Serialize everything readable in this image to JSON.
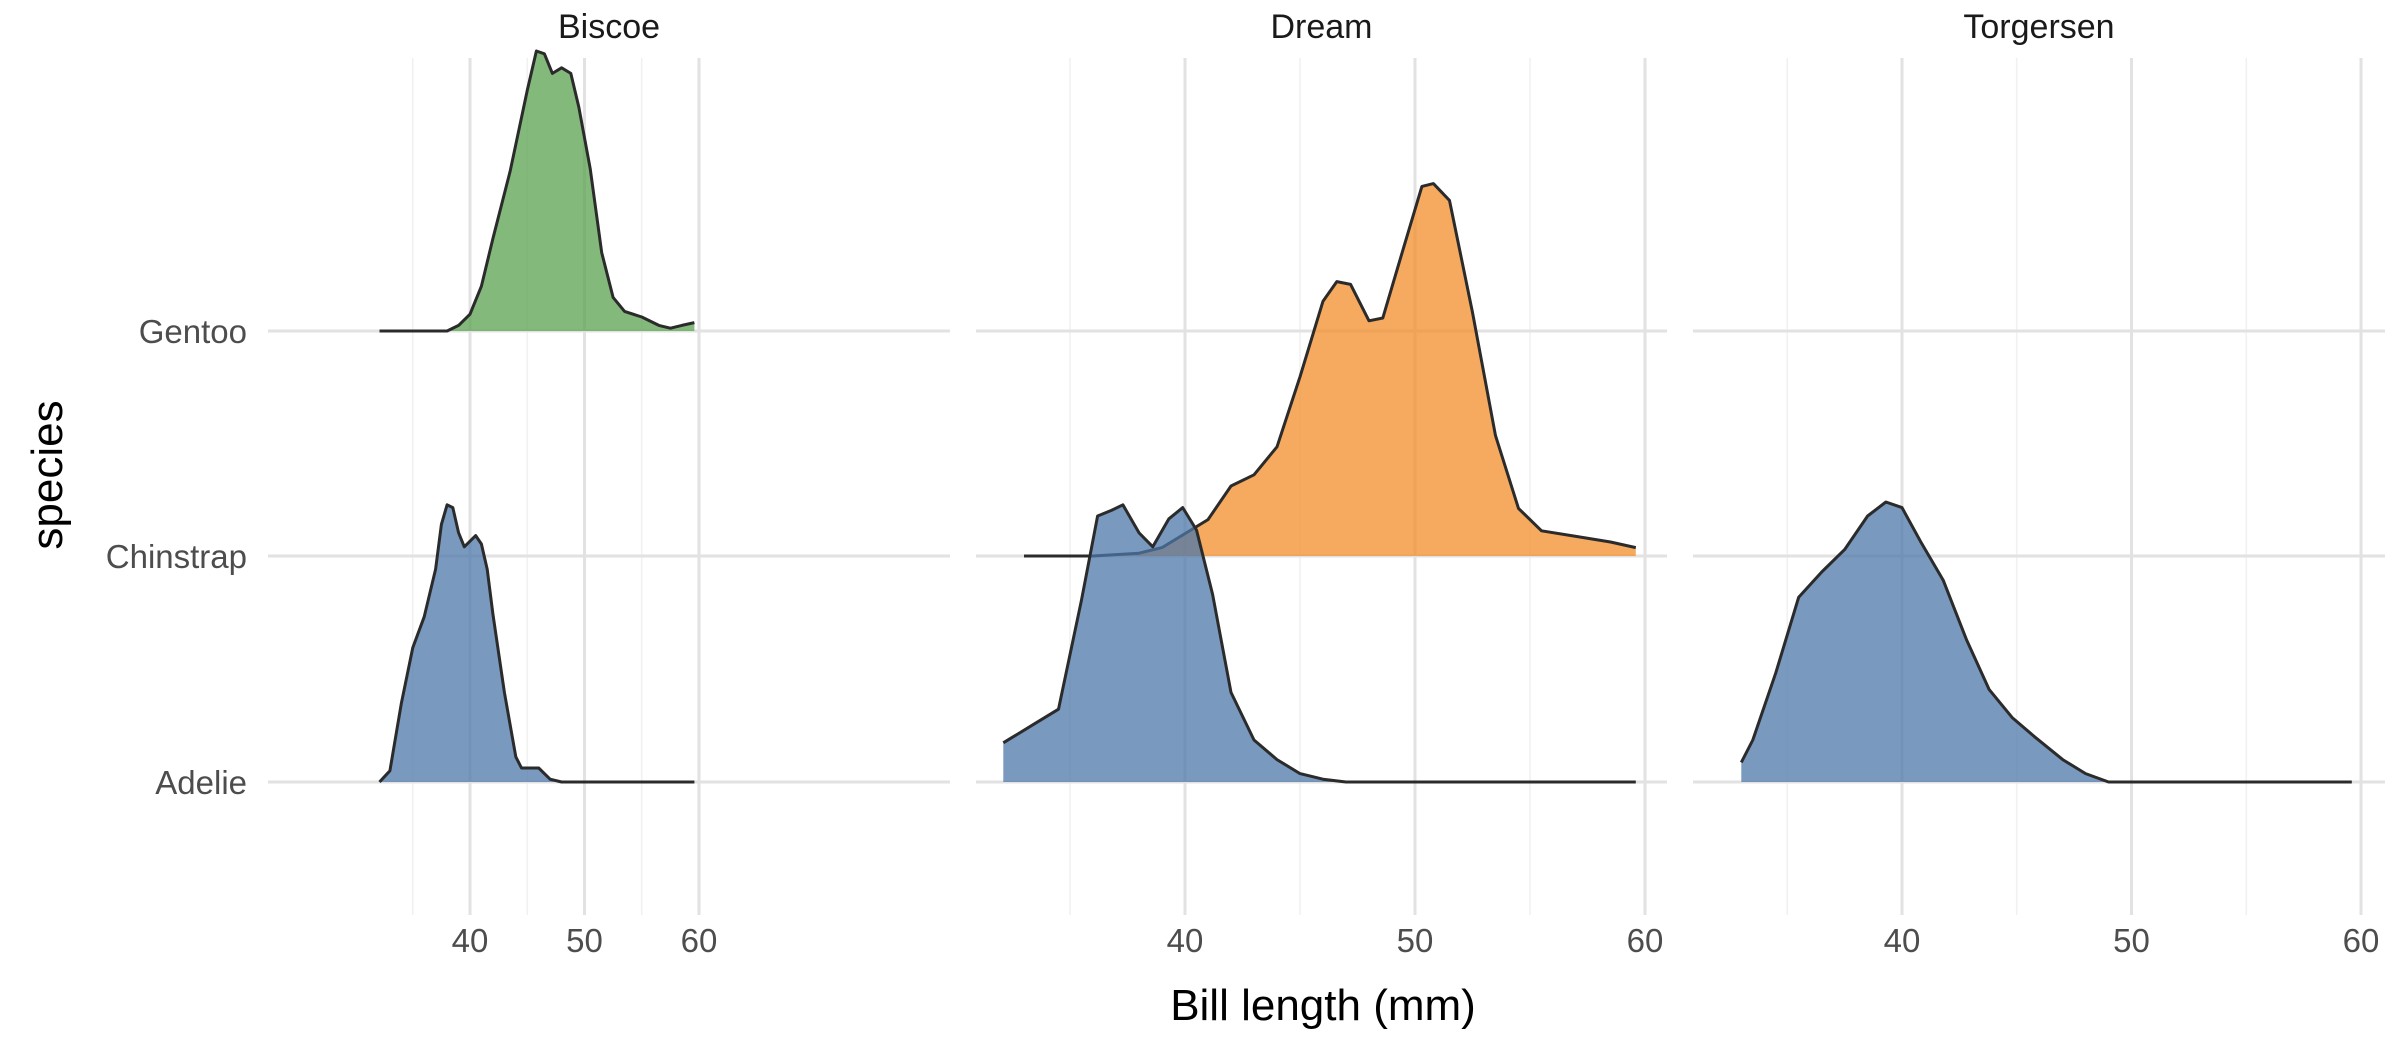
{
  "chart_data": {
    "type": "ridgeline-density",
    "facets": [
      "Biscoe",
      "Dream",
      "Torgersen"
    ],
    "categories": [
      "Adelie",
      "Chinstrap",
      "Gentoo"
    ],
    "xlabel": "Bill length (mm)",
    "ylabel": "species",
    "xlim": [
      32.1,
      59.6
    ],
    "x_ticks": [
      40,
      50,
      60
    ],
    "x_tick_labels": [
      "40",
      "50",
      "60"
    ],
    "colors": {
      "Adelie": "#4c77a9",
      "Chinstrap": "#f28e2b",
      "Gentoo": "#59a14f"
    },
    "grid": true,
    "legend": "none",
    "series": [
      {
        "facet": "Biscoe",
        "name": "Adelie",
        "x_range": [
          32.1,
          59.6
        ],
        "points": [
          [
            32.1,
            0.0
          ],
          [
            33.0,
            0.04
          ],
          [
            34.0,
            0.28
          ],
          [
            35.0,
            0.48
          ],
          [
            36.0,
            0.59
          ],
          [
            37.0,
            0.76
          ],
          [
            37.5,
            0.92
          ],
          [
            38.0,
            0.99
          ],
          [
            38.5,
            0.98
          ],
          [
            39.0,
            0.89
          ],
          [
            39.5,
            0.84
          ],
          [
            40.0,
            0.86
          ],
          [
            40.5,
            0.88
          ],
          [
            41.0,
            0.85
          ],
          [
            41.5,
            0.76
          ],
          [
            42.0,
            0.6
          ],
          [
            43.0,
            0.32
          ],
          [
            44.0,
            0.09
          ],
          [
            44.5,
            0.05
          ],
          [
            45.0,
            0.05
          ],
          [
            46.0,
            0.05
          ],
          [
            47.0,
            0.01
          ],
          [
            48.0,
            0.0
          ],
          [
            59.6,
            0.0
          ]
        ]
      },
      {
        "facet": "Biscoe",
        "name": "Gentoo",
        "x_range": [
          32.1,
          59.6
        ],
        "points": [
          [
            32.1,
            0.0
          ],
          [
            38.0,
            0.0
          ],
          [
            39.0,
            0.02
          ],
          [
            40.0,
            0.06
          ],
          [
            41.0,
            0.16
          ],
          [
            42.0,
            0.33
          ],
          [
            43.5,
            0.57
          ],
          [
            45.0,
            0.86
          ],
          [
            45.8,
            1.0
          ],
          [
            46.5,
            0.99
          ],
          [
            47.2,
            0.92
          ],
          [
            48.0,
            0.94
          ],
          [
            48.8,
            0.92
          ],
          [
            49.5,
            0.8
          ],
          [
            50.5,
            0.58
          ],
          [
            51.5,
            0.28
          ],
          [
            52.5,
            0.12
          ],
          [
            53.5,
            0.07
          ],
          [
            55.0,
            0.05
          ],
          [
            56.5,
            0.02
          ],
          [
            57.5,
            0.01
          ],
          [
            58.5,
            0.02
          ],
          [
            59.6,
            0.03
          ]
        ]
      },
      {
        "facet": "Dream",
        "name": "Chinstrap",
        "x_range": [
          33.0,
          59.6
        ],
        "points": [
          [
            33.0,
            0.0
          ],
          [
            36.0,
            0.0
          ],
          [
            37.0,
            0.005
          ],
          [
            38.0,
            0.01
          ],
          [
            39.0,
            0.03
          ],
          [
            40.0,
            0.08
          ],
          [
            41.0,
            0.13
          ],
          [
            42.0,
            0.25
          ],
          [
            43.0,
            0.29
          ],
          [
            44.0,
            0.39
          ],
          [
            45.0,
            0.64
          ],
          [
            46.0,
            0.91
          ],
          [
            46.6,
            0.98
          ],
          [
            47.2,
            0.97
          ],
          [
            48.0,
            0.84
          ],
          [
            48.6,
            0.85
          ],
          [
            49.5,
            1.1
          ],
          [
            50.3,
            1.32
          ],
          [
            50.8,
            1.33
          ],
          [
            51.5,
            1.27
          ],
          [
            52.5,
            0.87
          ],
          [
            53.5,
            0.43
          ],
          [
            54.5,
            0.17
          ],
          [
            55.5,
            0.09
          ],
          [
            57.0,
            0.07
          ],
          [
            58.5,
            0.05
          ],
          [
            59.6,
            0.03
          ]
        ]
      },
      {
        "facet": "Dream",
        "name": "Adelie",
        "x_range": [
          32.1,
          59.6
        ],
        "points": [
          [
            32.1,
            0.14
          ],
          [
            32.5,
            0.16
          ],
          [
            33.5,
            0.21
          ],
          [
            34.5,
            0.26
          ],
          [
            35.5,
            0.65
          ],
          [
            36.2,
            0.95
          ],
          [
            36.8,
            0.97
          ],
          [
            37.3,
            0.99
          ],
          [
            38.0,
            0.89
          ],
          [
            38.6,
            0.84
          ],
          [
            39.3,
            0.94
          ],
          [
            39.9,
            0.98
          ],
          [
            40.5,
            0.9
          ],
          [
            41.2,
            0.67
          ],
          [
            42.0,
            0.32
          ],
          [
            43.0,
            0.15
          ],
          [
            44.0,
            0.08
          ],
          [
            45.0,
            0.03
          ],
          [
            46.0,
            0.01
          ],
          [
            47.0,
            0.0
          ],
          [
            59.6,
            0.0
          ]
        ]
      },
      {
        "facet": "Torgersen",
        "name": "Adelie",
        "x_range": [
          33.0,
          59.6
        ],
        "points": [
          [
            33.0,
            0.07
          ],
          [
            33.5,
            0.15
          ],
          [
            34.5,
            0.39
          ],
          [
            35.5,
            0.66
          ],
          [
            36.5,
            0.75
          ],
          [
            37.5,
            0.83
          ],
          [
            38.5,
            0.95
          ],
          [
            39.3,
            1.0
          ],
          [
            40.0,
            0.98
          ],
          [
            40.8,
            0.86
          ],
          [
            41.8,
            0.72
          ],
          [
            42.8,
            0.51
          ],
          [
            43.8,
            0.33
          ],
          [
            44.8,
            0.23
          ],
          [
            45.8,
            0.16
          ],
          [
            47.0,
            0.08
          ],
          [
            48.0,
            0.03
          ],
          [
            49.0,
            0.0
          ],
          [
            59.6,
            0.0
          ]
        ]
      }
    ]
  }
}
